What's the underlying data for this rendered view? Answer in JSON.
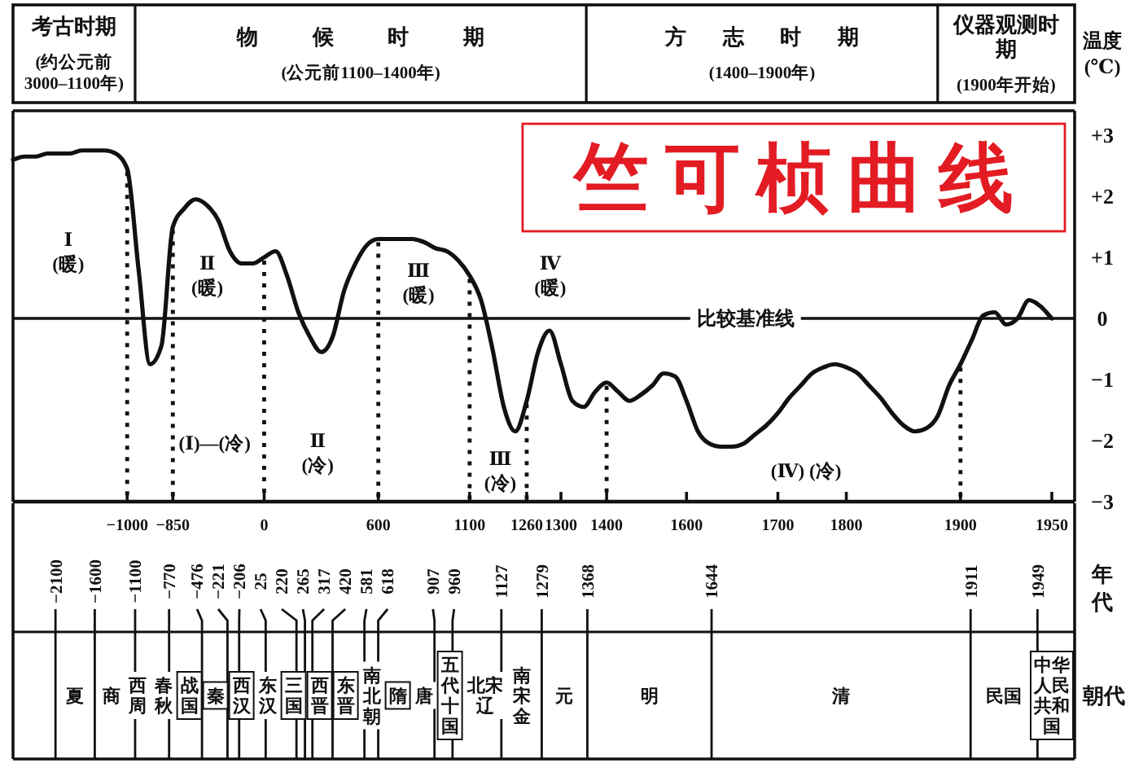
{
  "chart_data": [
    {
      "type": "line",
      "title": "竺可桢曲线",
      "ylabel": "温度(℃)",
      "categories": [
        null,
        null,
        null,
        null,
        null,
        null,
        null,
        null,
        null,
        null,
        "−1000",
        null,
        null,
        null,
        "−850",
        null,
        null,
        null,
        null,
        null,
        null,
        null,
        "0",
        null,
        null,
        null,
        null,
        null,
        null,
        null,
        null,
        null,
        "600",
        null,
        null,
        null,
        null,
        null,
        null,
        null,
        "1100",
        null,
        null,
        null,
        null,
        "1260",
        null,
        null,
        "1300",
        null,
        null,
        null,
        "1400",
        null,
        null,
        null,
        null,
        null,
        null,
        "1600",
        null,
        null,
        null,
        null,
        null,
        null,
        null,
        "1700",
        null,
        null,
        null,
        null,
        null,
        "1800",
        null,
        null,
        null,
        null,
        null,
        null,
        null,
        null,
        null,
        "1900",
        null,
        null,
        null,
        null,
        null,
        null,
        null,
        "1950",
        null,
        null
      ],
      "series": [
        {
          "color": "#111111",
          "values": [
            2.6,
            2.65,
            2.65,
            2.7,
            2.7,
            2.7,
            2.75,
            2.75,
            2.75,
            2.7,
            2.45,
            0.8,
            -0.75,
            -0.45,
            1.5,
            1.8,
            1.95,
            1.85,
            1.6,
            1.1,
            0.9,
            0.9,
            1.0,
            1.1,
            0.7,
            0.1,
            -0.3,
            -0.55,
            -0.3,
            0.45,
            0.9,
            1.2,
            1.3,
            1.3,
            1.3,
            1.3,
            1.25,
            1.15,
            1.1,
            0.95,
            0.7,
            0.3,
            -0.5,
            -1.45,
            -1.85,
            -1.35,
            -0.55,
            -0.2,
            -0.75,
            -1.35,
            -1.45,
            -1.2,
            -1.05,
            -1.2,
            -1.35,
            -1.25,
            -1.1,
            -0.9,
            -0.95,
            -1.35,
            -1.85,
            -2.05,
            -2.1,
            -2.1,
            -2.05,
            -1.9,
            -1.75,
            -1.55,
            -1.3,
            -1.1,
            -0.9,
            -0.8,
            -0.75,
            -0.8,
            -0.9,
            -1.1,
            -1.3,
            -1.55,
            -1.75,
            -1.85,
            -1.8,
            -1.6,
            -1.1,
            -0.75,
            -0.35,
            0.05,
            0.1,
            -0.1,
            0.0,
            0.3,
            0.2,
            0.0,
            null,
            null
          ]
        }
      ],
      "ylim": [
        -3,
        3.4
      ],
      "yticks": [
        {
          "value": 3,
          "label": "+3"
        },
        {
          "value": 2,
          "label": "+2"
        },
        {
          "value": 1,
          "label": "+1"
        },
        0,
        {
          "value": -1,
          "label": "−1"
        },
        {
          "value": -2,
          "label": "−2"
        },
        {
          "value": -3,
          "label": "−3"
        }
      ],
      "ref_lines": [
        {
          "axis": "y",
          "value": 0,
          "label": "比较基准线"
        },
        {
          "axis": "x",
          "value": "−1000",
          "line_style": "dotted"
        },
        {
          "axis": "x",
          "value": "−850",
          "line_style": "dotted"
        },
        {
          "axis": "x",
          "value": "0",
          "line_style": "dotted"
        },
        {
          "axis": "x",
          "value": "600",
          "line_style": "dotted"
        },
        {
          "axis": "x",
          "value": "1100",
          "line_style": "dotted"
        },
        {
          "axis": "x",
          "value": "1260",
          "line_style": "dotted"
        },
        {
          "axis": "x",
          "value": "1400",
          "line_style": "dotted"
        },
        {
          "axis": "x",
          "value": "1900",
          "line_style": "dotted"
        }
      ],
      "annotations": [
        "Ⅰ\n(暖)",
        "Ⅱ\n(暖)",
        "Ⅲ\n(暖)",
        "Ⅳ\n(暖)",
        "(Ⅰ)—(冷)",
        "Ⅱ\n(冷)",
        "Ⅲ\n(冷)",
        "(Ⅳ) (冷)",
        "考古时期\n(约公元前3000–1100年)",
        "物候时期\n(公元前1100–1400年)",
        "方志时期\n(1400–1900年)",
        "仪器观测时期\n(1900年开始)"
      ]
    },
    {
      "type": "other",
      "annotations": [
        "年代",
        "−2100",
        "−1600",
        "−1100",
        "−770",
        "−476",
        "−221",
        "−206",
        "25",
        "220",
        "265",
        "317",
        "420",
        "581",
        "618",
        "907",
        "960",
        "1127",
        "1279",
        "1368",
        "1644",
        "1911",
        "1949",
        "朝代",
        "夏",
        "商",
        "西周",
        "春秋",
        "战国",
        "秦",
        "西汉",
        "东汉",
        "三国",
        "西晋",
        "东晋",
        "南北朝",
        "隋",
        "唐",
        "五代十国",
        "北宋辽",
        "南宋金",
        "元",
        "明",
        "清",
        "民国",
        "中华人民共和国"
      ]
    }
  ]
}
